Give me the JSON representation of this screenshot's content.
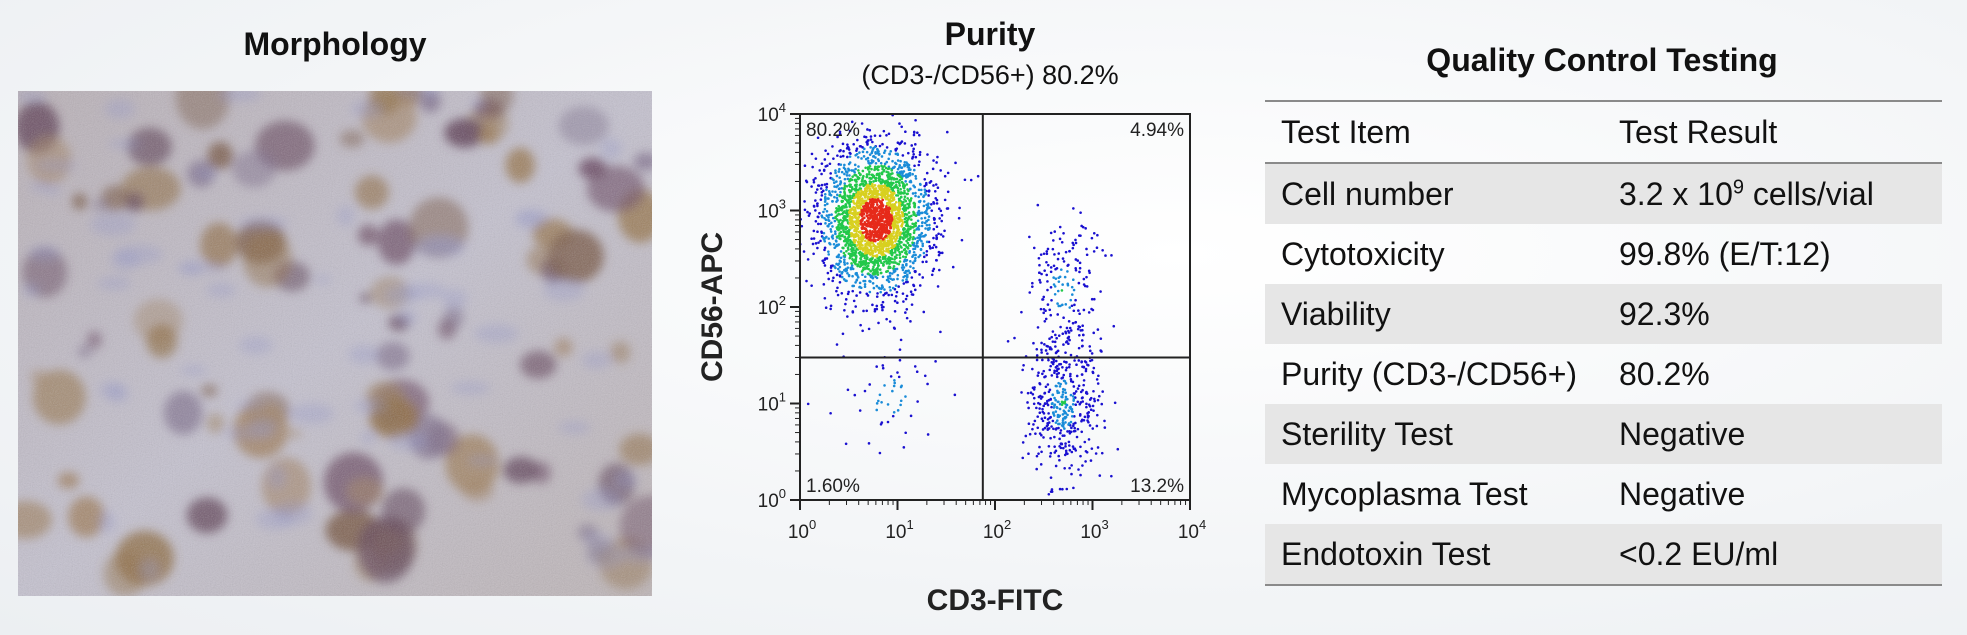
{
  "morphology": {
    "title": "Morphology"
  },
  "purity": {
    "title": "Purity",
    "subtitle": "(CD3-/CD56+) 80.2%"
  },
  "chart_data": {
    "type": "scatter",
    "title": "Purity",
    "subtitle": "(CD3-/CD56+) 80.2%",
    "xlabel": "CD3-FITC",
    "ylabel": "CD56-APC",
    "x_scale": "log",
    "y_scale": "log",
    "xlim": [
      1,
      10000
    ],
    "ylim": [
      1,
      10000
    ],
    "x_ticks": [
      {
        "base": "10",
        "exp": "0"
      },
      {
        "base": "10",
        "exp": "1"
      },
      {
        "base": "10",
        "exp": "2"
      },
      {
        "base": "10",
        "exp": "3"
      },
      {
        "base": "10",
        "exp": "4"
      }
    ],
    "y_ticks": [
      {
        "base": "10",
        "exp": "0"
      },
      {
        "base": "10",
        "exp": "1"
      },
      {
        "base": "10",
        "exp": "2"
      },
      {
        "base": "10",
        "exp": "3"
      },
      {
        "base": "10",
        "exp": "4"
      }
    ],
    "gates": {
      "x": 75,
      "y": 30
    },
    "quadrants": {
      "upper_left": "80.2%",
      "upper_right": "4.94%",
      "lower_left": "1.60%",
      "lower_right": "13.2%"
    },
    "populations": [
      {
        "population": "CD3-/CD56+",
        "x_center": 6,
        "y_center": 800,
        "share": 80.2
      },
      {
        "population": "CD3+/CD56-",
        "x_center": 500,
        "y_center": 10,
        "share": 13.2
      },
      {
        "population": "CD3+/CD56+",
        "x_center": 500,
        "y_center": 150,
        "share": 4.94
      },
      {
        "population": "CD3-/CD56-",
        "x_center": 8,
        "y_center": 12,
        "share": 1.6
      }
    ],
    "colors": {
      "low": "#1a10d0",
      "mid": "#22c84a",
      "high": "#e62a1a"
    }
  },
  "qc": {
    "title": "Quality Control Testing",
    "headers": {
      "item": "Test Item",
      "result": "Test Result"
    },
    "rows": [
      {
        "item": "Cell number",
        "result_prefix": "3.2 x 10",
        "result_sup": "9",
        "result_suffix": " cells/vial"
      },
      {
        "item": "Cytotoxicity",
        "result": "99.8% (E/T:12)"
      },
      {
        "item": "Viability",
        "result": "92.3%"
      },
      {
        "item": "Purity (CD3-/CD56+)",
        "result": "80.2%"
      },
      {
        "item": "Sterility Test",
        "result": "Negative"
      },
      {
        "item": "Mycoplasma Test",
        "result": "Negative"
      },
      {
        "item": "Endotoxin Test",
        "result": "<0.2 EU/ml"
      }
    ]
  }
}
